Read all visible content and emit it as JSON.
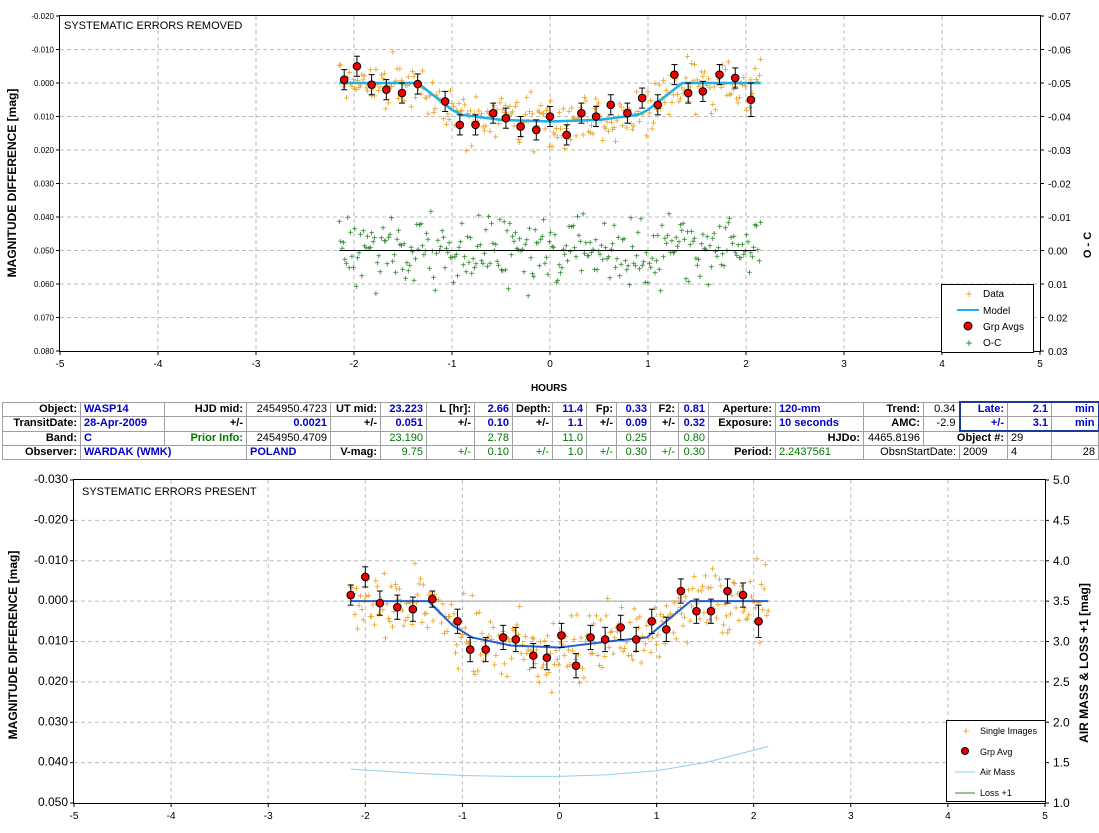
{
  "colors": {
    "data": "#e8a020",
    "model": "#1ab0e8",
    "grp": "#ee0000",
    "oc": "#208020",
    "grid": "#bdbdbd",
    "bottom_model": "#2060d0",
    "airmass": "#8fd0f0",
    "loss": "#209020",
    "zero_line": "#000000"
  },
  "chart_data": [
    {
      "type": "scatter",
      "title": "SYSTEMATIC ERRORS REMOVED",
      "xlabel": "HOURS",
      "ylabel": "MAGNITUDE DIFFERENCE [mag]",
      "ylabel_right": "O - C",
      "xlim": [
        -5,
        5
      ],
      "ylim": [
        -0.02,
        0.08
      ],
      "ylim_right": [
        -0.07,
        0.03
      ],
      "y_inverted": true,
      "x_ticks": [
        "-5",
        "-4",
        "-3",
        "-2",
        "-1",
        "0",
        "1",
        "2",
        "3",
        "4",
        "5"
      ],
      "y_ticks": [
        "-0.020",
        "-0.010",
        "0.000",
        "0.010",
        "0.020",
        "0.030",
        "0.040",
        "0.050",
        "0.060",
        "0.070",
        "0.080"
      ],
      "y_ticks_right": [
        "-0.07",
        "-0.06",
        "-0.05",
        "-0.04",
        "-0.03",
        "-0.02",
        "-0.01",
        "0.00",
        "0.01",
        "0.02",
        "0.03"
      ],
      "grid": true,
      "legend_position": "bottom-right",
      "legend": [
        "Data",
        "Model",
        "Grp Avgs",
        "O-C"
      ],
      "model": {
        "x": [
          -2.15,
          -1.35,
          -1.0,
          -0.9,
          -0.5,
          0.0,
          0.5,
          0.9,
          1.0,
          1.35,
          2.15
        ],
        "y": [
          0.0,
          0.0,
          0.008,
          0.0095,
          0.011,
          0.0115,
          0.011,
          0.0095,
          0.008,
          0.0,
          0.0
        ]
      },
      "group_averages": {
        "x": [
          -2.1,
          -1.97,
          -1.82,
          -1.67,
          -1.51,
          -1.35,
          -1.07,
          -0.92,
          -0.76,
          -0.58,
          -0.45,
          -0.3,
          -0.14,
          0.0,
          0.17,
          0.32,
          0.47,
          0.62,
          0.79,
          0.94,
          1.1,
          1.27,
          1.41,
          1.56,
          1.73,
          1.89,
          2.05
        ],
        "y": [
          -0.001,
          -0.005,
          0.0005,
          0.002,
          0.003,
          0.0003,
          0.0055,
          0.0125,
          0.0125,
          0.009,
          0.0105,
          0.013,
          0.014,
          0.01,
          0.0155,
          0.009,
          0.01,
          0.0065,
          0.009,
          0.0045,
          0.0065,
          -0.0025,
          0.003,
          0.0025,
          -0.0025,
          -0.0015,
          0.005
        ],
        "err": [
          0.003,
          0.003,
          0.003,
          0.003,
          0.003,
          0.003,
          0.003,
          0.003,
          0.003,
          0.003,
          0.003,
          0.003,
          0.003,
          0.003,
          0.003,
          0.003,
          0.003,
          0.003,
          0.003,
          0.003,
          0.003,
          0.003,
          0.003,
          0.003,
          0.003,
          0.003,
          0.005
        ]
      },
      "oc_zero": 0.0,
      "oc_range": [
        -2.15,
        2.1
      ]
    },
    {
      "type": "scatter",
      "title": "SYSTEMATIC ERRORS PRESENT",
      "xlabel": "",
      "ylabel": "MAGNITUDE DIFFERENCE [mag]",
      "ylabel_right": "AIR MASS & LOSS +1 [mag]",
      "xlim": [
        -5,
        5
      ],
      "ylim": [
        -0.03,
        0.05
      ],
      "ylim_right": [
        1.0,
        5.0
      ],
      "y_inverted": true,
      "x_ticks": [
        "-5",
        "-4",
        "-3",
        "-2",
        "-1",
        "0",
        "1",
        "2",
        "3",
        "4",
        "5"
      ],
      "y_ticks": [
        "-0.030",
        "-0.020",
        "-0.010",
        "0.000",
        "0.010",
        "0.020",
        "0.030",
        "0.040",
        "0.050"
      ],
      "y_ticks_right": [
        "1.0",
        "1.5",
        "2.0",
        "2.5",
        "3.0",
        "3.5",
        "4.0",
        "4.5",
        "5.0"
      ],
      "grid": true,
      "legend_position": "bottom-right",
      "legend": [
        "Single Images",
        "Grp Avg",
        "Air Mass",
        "Loss +1"
      ],
      "model": {
        "x": [
          -2.15,
          -1.35,
          -1.1,
          -0.9,
          -0.5,
          0.0,
          0.5,
          0.9,
          1.1,
          1.35,
          2.15
        ],
        "y": [
          0.0,
          0.0,
          0.006,
          0.009,
          0.011,
          0.0115,
          0.01,
          0.009,
          0.005,
          0.0,
          0.0
        ]
      },
      "group_averages": {
        "x": [
          -2.15,
          -2.0,
          -1.85,
          -1.67,
          -1.51,
          -1.31,
          -1.05,
          -0.92,
          -0.76,
          -0.58,
          -0.45,
          -0.27,
          -0.13,
          0.02,
          0.17,
          0.32,
          0.47,
          0.63,
          0.79,
          0.95,
          1.1,
          1.25,
          1.41,
          1.56,
          1.73,
          1.89,
          2.05
        ],
        "y": [
          -0.0015,
          -0.006,
          0.0005,
          0.0015,
          0.002,
          -0.0005,
          0.005,
          0.012,
          0.012,
          0.009,
          0.0095,
          0.0135,
          0.014,
          0.0085,
          0.016,
          0.009,
          0.0095,
          0.0065,
          0.0095,
          0.005,
          0.007,
          -0.0025,
          0.0025,
          0.0025,
          -0.0025,
          -0.0015,
          0.005
        ],
        "err": [
          0.0025,
          0.0025,
          0.003,
          0.003,
          0.003,
          0.002,
          0.003,
          0.003,
          0.003,
          0.003,
          0.003,
          0.003,
          0.003,
          0.003,
          0.003,
          0.003,
          0.003,
          0.003,
          0.003,
          0.003,
          0.003,
          0.003,
          0.003,
          0.003,
          0.003,
          0.003,
          0.004
        ]
      },
      "air_mass": {
        "x": [
          -2.15,
          -1.5,
          -1.0,
          -0.5,
          0.0,
          0.5,
          1.0,
          1.5,
          2.15
        ],
        "y": [
          1.42,
          1.37,
          1.34,
          1.33,
          1.33,
          1.35,
          1.4,
          1.5,
          1.7
        ]
      }
    }
  ],
  "info_table": {
    "r0": {
      "object_lbl": "Object:",
      "object": "WASP14",
      "hjd_mid_lbl": "HJD mid:",
      "hjd_mid": "2454950.4723",
      "ut_mid_lbl": "UT mid:",
      "ut_mid": "23.223",
      "l_lbl": "L [hr]:",
      "l": "2.66",
      "depth_lbl": "Depth:",
      "depth": "11.4",
      "fp_lbl": "Fp:",
      "fp": "0.33",
      "f2_lbl": "F2:",
      "f2": "0.81",
      "aperture_lbl": "Aperture:",
      "aperture": "120-mm",
      "trend_lbl": "Trend:",
      "trend": "0.34",
      "late_lbl": "Late:",
      "late": "2.1",
      "late_unit": "min"
    },
    "r1": {
      "transit_lbl": "TransitDate:",
      "transit": "28-Apr-2009",
      "pm1": "+/-",
      "hjd_err": "0.0021",
      "pm2": "+/-",
      "ut_err": "0.051",
      "pm3": "+/-",
      "l_err": "0.10",
      "pm4": "+/-",
      "depth_err": "1.1",
      "pm5": "+/-",
      "fp_err": "0.09",
      "pm6": "+/-",
      "f2_err": "0.32",
      "exposure_lbl": "Exposure:",
      "exposure": "10 seconds",
      "amc_lbl": "AMC:",
      "amc": "-2.9",
      "pm7": "+/-",
      "late_err": "3.1",
      "late_err_unit": "min"
    },
    "r2": {
      "band_lbl": "Band:",
      "band": "C",
      "prior_lbl": "Prior Info:",
      "prior_hjd": "2454950.4709",
      "prior_ut": "23.190",
      "prior_l": "2.78",
      "prior_depth": "11.0",
      "prior_fp": "0.25",
      "prior_f2": "0.80",
      "hjdo_lbl": "HJDo:",
      "hjdo": "4465.8196",
      "objnum_lbl": "Object #:",
      "objnum": "29"
    },
    "r3": {
      "observer_lbl": "Observer:",
      "observer": "WARDAK (WMK)",
      "country": "POLAND",
      "vmag_lbl": "V-mag:",
      "vmag": "9.75",
      "pm1": "+/-",
      "vmag_err": "0.10",
      "pm2": "+/-",
      "e2": "1.0",
      "pm3": "+/-",
      "e3": "0.30",
      "pm4": "+/-",
      "e4": "0.30",
      "period_lbl": "Period:",
      "period": "2.2437561",
      "obsn_lbl": "ObsnStartDate:",
      "obsn_y": "2009",
      "obsn_m": "4",
      "obsn_d": "28"
    }
  }
}
